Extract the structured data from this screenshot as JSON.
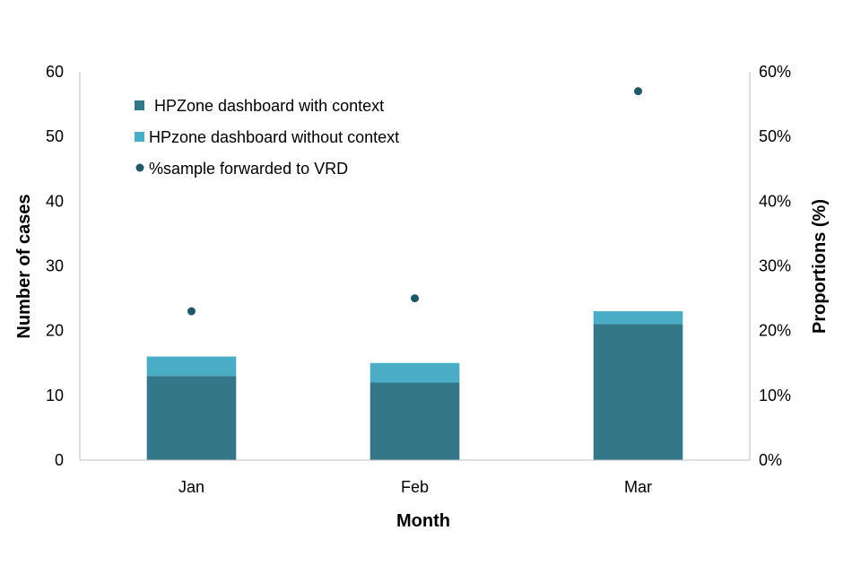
{
  "chart_data": {
    "type": "bar",
    "stacked": true,
    "categories": [
      "Jan",
      "Feb",
      "Mar"
    ],
    "series": [
      {
        "name": "HPZone dashboard with context",
        "type": "bar",
        "axis": "left",
        "values": [
          13,
          12,
          21
        ],
        "color": "#347788"
      },
      {
        "name": "HPzone dashboard without context",
        "type": "bar",
        "axis": "left",
        "values": [
          3,
          3,
          2
        ],
        "color": "#4BACC6"
      },
      {
        "name": "%sample forwarded to VRD",
        "type": "scatter",
        "axis": "right",
        "values": [
          23,
          25,
          57
        ],
        "color": "#215868"
      }
    ],
    "xlabel": "Month",
    "ylabel": "Number of cases",
    "y2label": "Proportions (%)",
    "ylim": [
      0,
      60
    ],
    "y2lim": [
      0,
      60
    ],
    "yticks": [
      "0",
      "10",
      "20",
      "30",
      "40",
      "50",
      "60"
    ],
    "y2ticks": [
      "0%",
      "10%",
      "20%",
      "30%",
      "40%",
      "50%",
      "60%"
    ],
    "grid": false,
    "legend_position": "top-left"
  }
}
